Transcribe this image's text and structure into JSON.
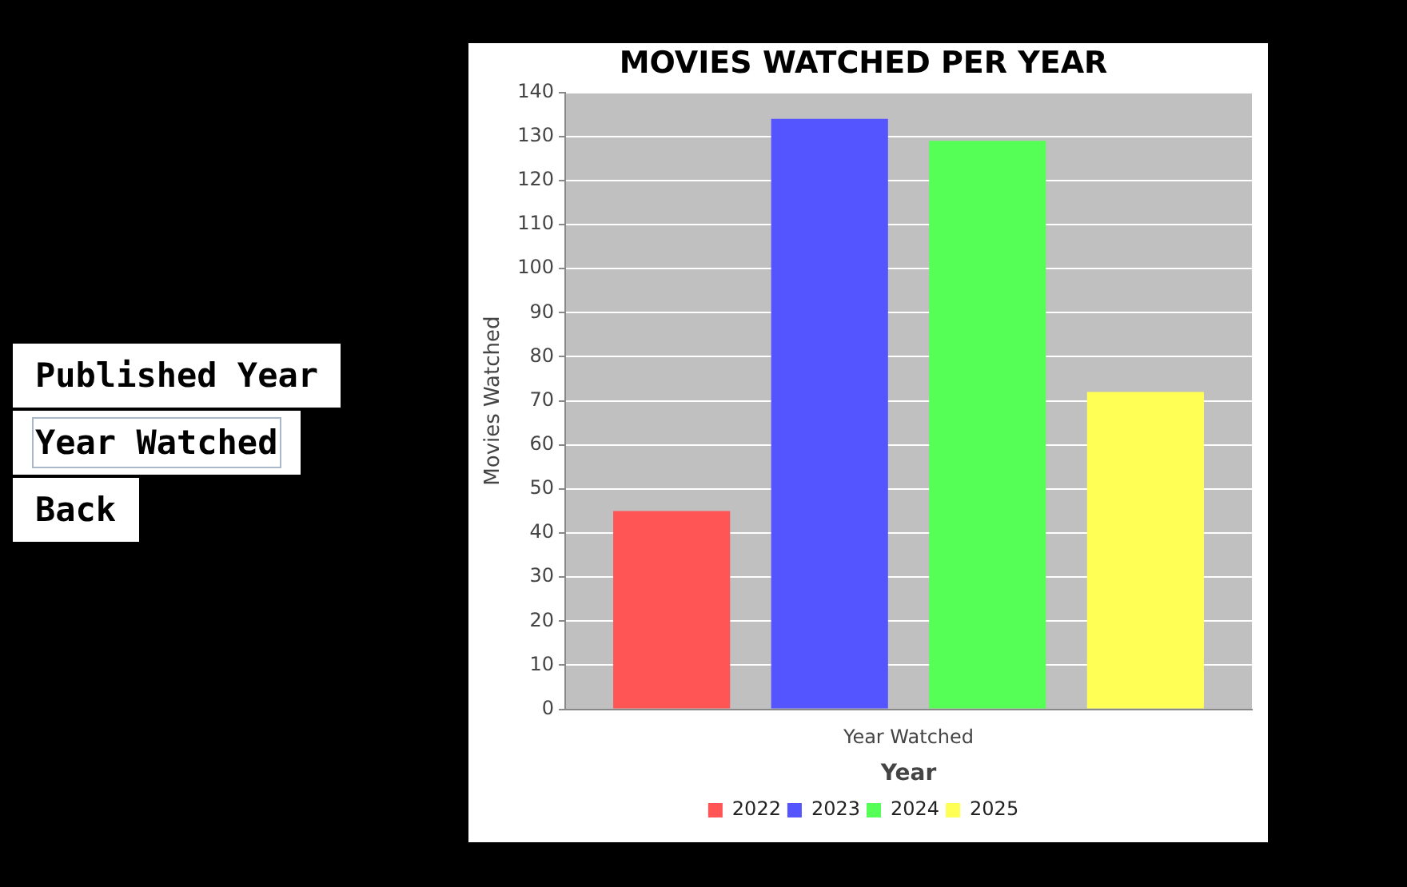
{
  "chart_data": {
    "type": "bar",
    "title": "MOVIES WATCHED PER YEAR",
    "xlabel": "Year",
    "ylabel": "Movies Watched",
    "categories": [
      "Year Watched"
    ],
    "series": [
      {
        "name": "2022",
        "color": "#ff5555",
        "values": [
          45
        ]
      },
      {
        "name": "2023",
        "color": "#5555ff",
        "values": [
          134
        ]
      },
      {
        "name": "2024",
        "color": "#55ff55",
        "values": [
          129
        ]
      },
      {
        "name": "2025",
        "color": "#ffff55",
        "values": [
          72
        ]
      }
    ],
    "ylim": [
      0,
      140
    ],
    "yticks": [
      0,
      10,
      20,
      30,
      40,
      50,
      60,
      70,
      80,
      90,
      100,
      110,
      120,
      130,
      140
    ],
    "grid": "y",
    "legend": "bottom",
    "annotations": [
      "Published Year",
      "Year Watched",
      "Back"
    ]
  }
}
